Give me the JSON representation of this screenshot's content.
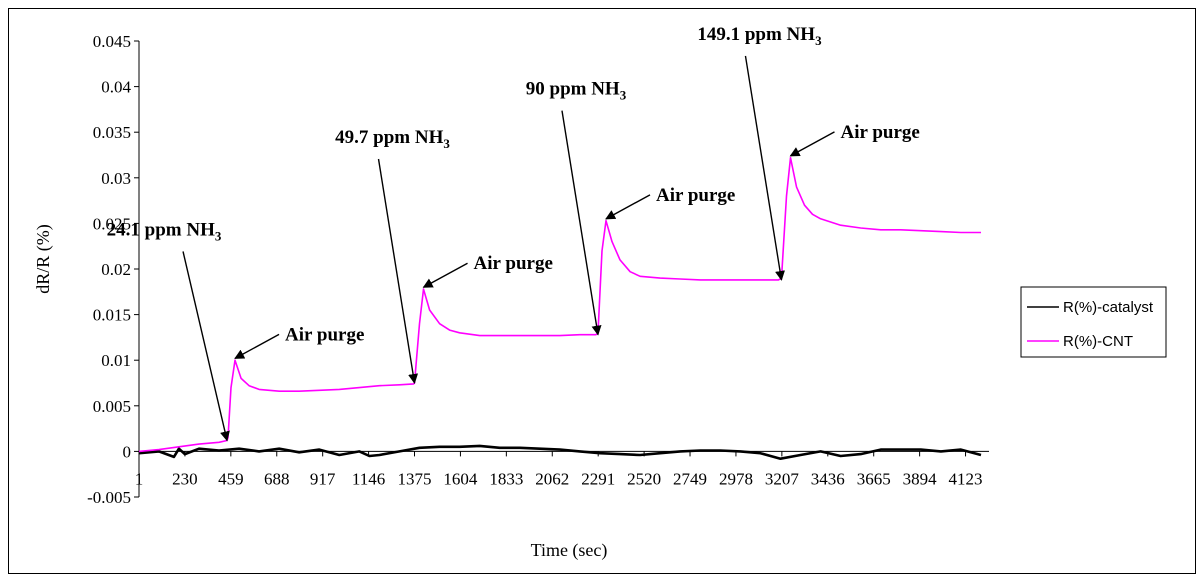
{
  "chart_data": {
    "type": "line",
    "title": "",
    "xlabel": "Time (sec)",
    "ylabel": "dR/R (%)",
    "x_ticks": [
      "1",
      "230",
      "459",
      "688",
      "917",
      "1146",
      "1375",
      "1604",
      "1833",
      "2062",
      "2291",
      "2520",
      "2749",
      "2978",
      "3207",
      "3436",
      "3665",
      "3894",
      "4123"
    ],
    "y_ticks": [
      "0.045",
      "0.04",
      "0.035",
      "0.03",
      "0.025",
      "0.02",
      "0.015",
      "0.01",
      "0.005",
      "0",
      "-0.005"
    ],
    "xlim": [
      1,
      4240
    ],
    "ylim": [
      -0.005,
      0.045
    ],
    "grid": false,
    "legend_position": "right",
    "series": [
      {
        "name": "R(%)-catalyst",
        "color": "#000000",
        "x": [
          1,
          100,
          175,
          200,
          230,
          300,
          400,
          500,
          600,
          700,
          800,
          900,
          1000,
          1100,
          1150,
          1200,
          1300,
          1400,
          1500,
          1600,
          1700,
          1800,
          1900,
          2000,
          2100,
          2200,
          2300,
          2400,
          2500,
          2600,
          2700,
          2800,
          2900,
          3000,
          3100,
          3200,
          3300,
          3400,
          3500,
          3600,
          3700,
          3800,
          3900,
          4000,
          4100,
          4200
        ],
        "y": [
          -0.0002,
          0.0,
          -0.0006,
          0.0003,
          -0.0003,
          0.0003,
          0.0001,
          0.0003,
          0.0,
          0.0003,
          -0.0001,
          0.0002,
          -0.0004,
          0.0,
          -0.0005,
          -0.0004,
          0.0,
          0.0004,
          0.0005,
          0.0005,
          0.0006,
          0.0004,
          0.0004,
          0.0003,
          0.0002,
          0.0,
          -0.0002,
          -0.0003,
          -0.0004,
          -0.0002,
          0.0,
          0.0001,
          0.0001,
          0.0,
          -0.0002,
          -0.0008,
          -0.0004,
          0.0,
          -0.0005,
          -0.0003,
          0.0002,
          0.0002,
          0.0002,
          0.0,
          0.0002,
          -0.0004
        ]
      },
      {
        "name": "R(%)-CNT",
        "color": "#FF00FF",
        "x": [
          1,
          100,
          200,
          300,
          400,
          440,
          445,
          460,
          480,
          510,
          550,
          600,
          700,
          800,
          900,
          1000,
          1100,
          1200,
          1300,
          1370,
          1375,
          1400,
          1420,
          1450,
          1500,
          1550,
          1600,
          1700,
          1800,
          1900,
          2000,
          2100,
          2200,
          2280,
          2290,
          2310,
          2330,
          2360,
          2400,
          2450,
          2500,
          2600,
          2700,
          2800,
          2900,
          3000,
          3100,
          3190,
          3205,
          3230,
          3250,
          3280,
          3320,
          3360,
          3400,
          3500,
          3600,
          3700,
          3800,
          3900,
          4000,
          4100,
          4200
        ],
        "y": [
          0.0,
          0.0002,
          0.0005,
          0.0008,
          0.001,
          0.0012,
          0.0015,
          0.007,
          0.01,
          0.008,
          0.0072,
          0.0068,
          0.0066,
          0.0066,
          0.0067,
          0.0068,
          0.007,
          0.0072,
          0.0073,
          0.0074,
          0.0075,
          0.014,
          0.0178,
          0.0155,
          0.014,
          0.0133,
          0.013,
          0.0127,
          0.0127,
          0.0127,
          0.0127,
          0.0127,
          0.0128,
          0.0128,
          0.013,
          0.022,
          0.0253,
          0.023,
          0.021,
          0.0197,
          0.0192,
          0.019,
          0.0189,
          0.0188,
          0.0188,
          0.0188,
          0.0188,
          0.0188,
          0.019,
          0.028,
          0.0322,
          0.029,
          0.027,
          0.026,
          0.0255,
          0.0248,
          0.0245,
          0.0243,
          0.0243,
          0.0242,
          0.0241,
          0.024,
          0.024
        ]
      }
    ],
    "annotations": [
      {
        "text": "24.1 ppm NH",
        "sub": "3",
        "x": 440,
        "y": 0.0012,
        "kind": "gas"
      },
      {
        "text": "Air purge",
        "sub": "",
        "x": 480,
        "y": 0.0102,
        "kind": "purge"
      },
      {
        "text": "49.7 ppm NH",
        "sub": "3",
        "x": 1375,
        "y": 0.0075,
        "kind": "gas"
      },
      {
        "text": "Air purge",
        "sub": "",
        "x": 1420,
        "y": 0.018,
        "kind": "purge"
      },
      {
        "text": "90 ppm NH",
        "sub": "3",
        "x": 2290,
        "y": 0.0128,
        "kind": "gas"
      },
      {
        "text": "Air purge",
        "sub": "",
        "x": 2330,
        "y": 0.0255,
        "kind": "purge"
      },
      {
        "text": "149.1 ppm NH",
        "sub": "3",
        "x": 3205,
        "y": 0.0188,
        "kind": "gas"
      },
      {
        "text": "Air purge",
        "sub": "",
        "x": 3250,
        "y": 0.0324,
        "kind": "purge"
      }
    ]
  }
}
